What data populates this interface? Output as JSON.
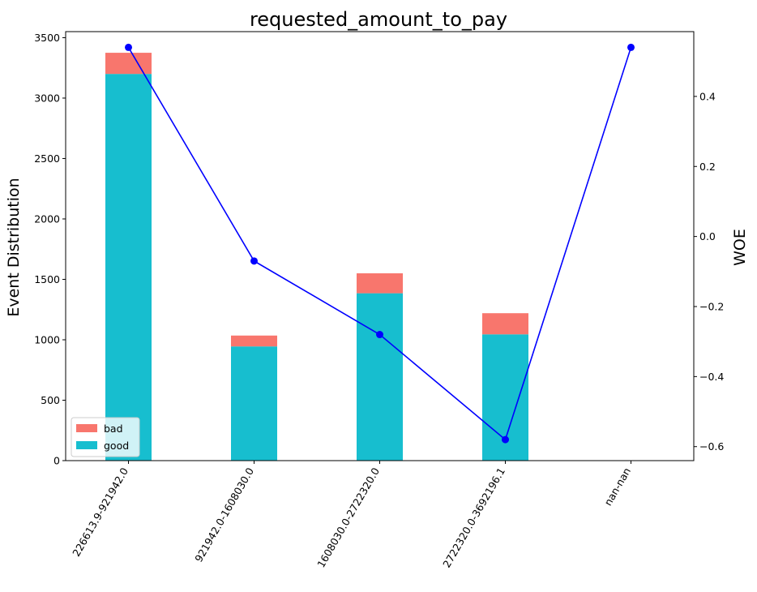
{
  "chart_data": {
    "type": "bar",
    "title": "requested_amount_to_pay",
    "ylabel": "Event Distribution",
    "y2label": "WOE",
    "categories": [
      "226613.9-921942.0",
      "921942.0-1608030.0",
      "1608030.0-2722320.0",
      "2722320.0-3692196.1",
      "nan-nan"
    ],
    "stacked": true,
    "series": [
      {
        "name": "good",
        "values": [
          3200,
          945,
          1385,
          1045,
          0
        ],
        "color": "#17becf"
      },
      {
        "name": "bad",
        "values": [
          175,
          90,
          165,
          175,
          0
        ],
        "color": "#f8766d"
      }
    ],
    "line_series": {
      "values": [
        0.54,
        -0.07,
        -0.28,
        -0.58,
        0.54
      ],
      "color": "#0000ff",
      "axis": "right"
    },
    "ylim": [
      0,
      3550
    ],
    "y2lim": [
      -0.64,
      0.585
    ],
    "yticks": [
      "0",
      "500",
      "1000",
      "1500",
      "2000",
      "2500",
      "3000",
      "3500"
    ],
    "y2ticks": [
      "−0.6",
      "−0.4",
      "−0.2",
      "0.0",
      "0.2",
      "0.4"
    ],
    "legend": {
      "position": "lower-left",
      "labels": [
        "bad",
        "good"
      ]
    },
    "grid": false
  }
}
